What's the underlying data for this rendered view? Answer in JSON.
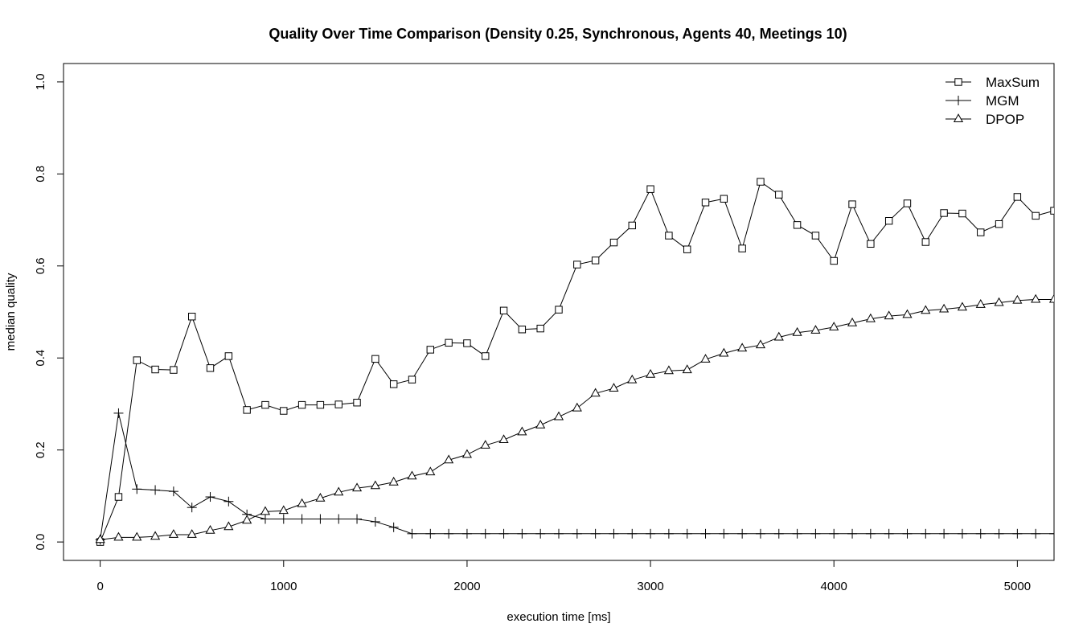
{
  "chart_data": {
    "type": "line",
    "title": "Quality Over Time Comparison (Density 0.25, Synchronous, Agents 40, Meetings 10)",
    "xlabel": "execution time [ms]",
    "ylabel": "median quality",
    "xlim": [
      -200,
      5200
    ],
    "ylim": [
      -0.04,
      1.04
    ],
    "xticks": [
      0,
      1000,
      2000,
      3000,
      4000,
      5000
    ],
    "xtick_labels": [
      "0",
      "1000",
      "2000",
      "3000",
      "4000",
      "5000"
    ],
    "yticks": [
      0.0,
      0.2,
      0.4,
      0.6,
      0.8,
      1.0
    ],
    "ytick_labels": [
      "0.0",
      "0.2",
      "0.4",
      "0.6",
      "0.8",
      "1.0"
    ],
    "grid": false,
    "legend_position": "top-right",
    "x": [
      0,
      100,
      200,
      300,
      400,
      500,
      600,
      700,
      800,
      900,
      1000,
      1100,
      1200,
      1300,
      1400,
      1500,
      1600,
      1700,
      1800,
      1900,
      2000,
      2100,
      2200,
      2300,
      2400,
      2500,
      2600,
      2700,
      2800,
      2900,
      3000,
      3100,
      3200,
      3300,
      3400,
      3500,
      3600,
      3700,
      3800,
      3900,
      4000,
      4100,
      4200,
      4300,
      4400,
      4500,
      4600,
      4700,
      4800,
      4900,
      5000,
      5100,
      5200
    ],
    "series": [
      {
        "name": "MaxSum",
        "marker": "square",
        "values": [
          0.0,
          0.098,
          0.395,
          0.375,
          0.374,
          0.49,
          0.378,
          0.404,
          0.287,
          0.298,
          0.285,
          0.298,
          0.298,
          0.299,
          0.303,
          0.398,
          0.343,
          0.353,
          0.418,
          0.433,
          0.432,
          0.404,
          0.503,
          0.462,
          0.464,
          0.505,
          0.603,
          0.612,
          0.651,
          0.688,
          0.767,
          0.666,
          0.636,
          0.738,
          0.746,
          0.638,
          0.783,
          0.755,
          0.689,
          0.666,
          0.611,
          0.734,
          0.648,
          0.698,
          0.736,
          0.652,
          0.715,
          0.714,
          0.673,
          0.691,
          0.75,
          0.709,
          0.72
        ]
      },
      {
        "name": "MGM",
        "marker": "plus",
        "values": [
          0.005,
          0.28,
          0.115,
          0.113,
          0.11,
          0.075,
          0.098,
          0.088,
          0.06,
          0.05,
          0.05,
          0.05,
          0.05,
          0.05,
          0.05,
          0.044,
          0.032,
          0.018,
          0.018,
          0.018,
          0.018,
          0.018,
          0.018,
          0.018,
          0.018,
          0.018,
          0.018,
          0.018,
          0.018,
          0.018,
          0.018,
          0.018,
          0.018,
          0.018,
          0.018,
          0.018,
          0.018,
          0.018,
          0.018,
          0.018,
          0.018,
          0.018,
          0.018,
          0.018,
          0.018,
          0.018,
          0.018,
          0.018,
          0.018,
          0.018,
          0.018,
          0.018,
          0.018
        ]
      },
      {
        "name": "DPOP",
        "marker": "triangle",
        "values": [
          0.005,
          0.01,
          0.01,
          0.012,
          0.016,
          0.016,
          0.025,
          0.033,
          0.047,
          0.066,
          0.068,
          0.083,
          0.095,
          0.108,
          0.117,
          0.122,
          0.13,
          0.143,
          0.152,
          0.178,
          0.19,
          0.21,
          0.222,
          0.239,
          0.254,
          0.272,
          0.291,
          0.323,
          0.334,
          0.352,
          0.364,
          0.372,
          0.374,
          0.397,
          0.41,
          0.421,
          0.428,
          0.445,
          0.455,
          0.46,
          0.467,
          0.476,
          0.485,
          0.491,
          0.494,
          0.503,
          0.506,
          0.51,
          0.516,
          0.52,
          0.525,
          0.527,
          0.527
        ]
      }
    ]
  }
}
